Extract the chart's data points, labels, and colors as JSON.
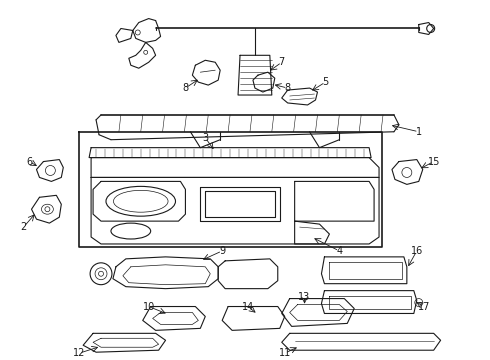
{
  "bg_color": "#ffffff",
  "line_color": "#1a1a1a",
  "fig_width": 4.9,
  "fig_height": 3.6,
  "dpi": 100,
  "label_fs": 7,
  "lw": 0.8
}
